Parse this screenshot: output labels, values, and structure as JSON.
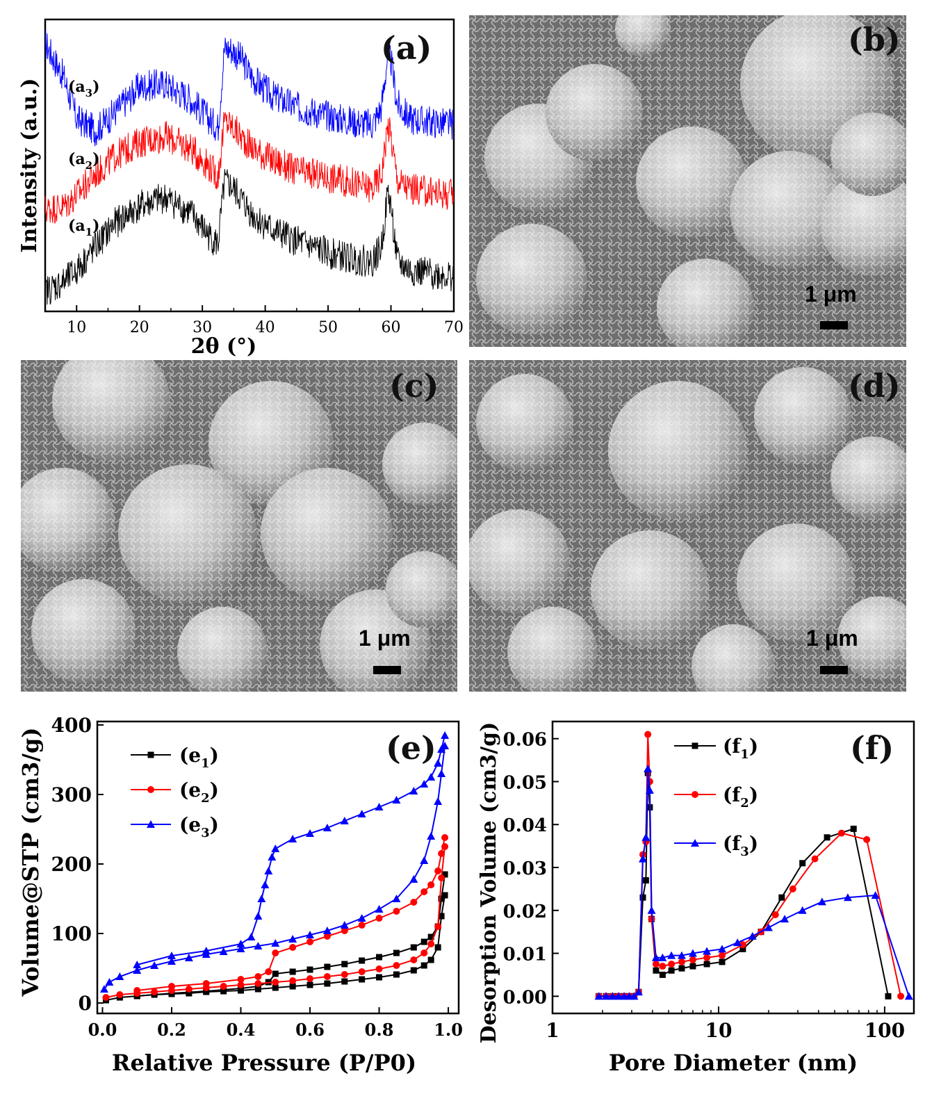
{
  "panels": {
    "a": {
      "label": "(a)"
    },
    "b": {
      "label": "(b)",
      "scale_label": "1 μm"
    },
    "c": {
      "label": "(c)",
      "scale_label": "1 μm"
    },
    "d": {
      "label": "(d)",
      "scale_label": "1 μm"
    },
    "e": {
      "label": "(e)"
    },
    "f": {
      "label": "(f)"
    }
  },
  "chart_data": [
    {
      "id": "a",
      "type": "line",
      "xlabel": "2θ (°)",
      "ylabel": "Intensity (a.u.)",
      "xlim": [
        5,
        70
      ],
      "xticks": [
        10,
        20,
        30,
        40,
        50,
        60,
        70
      ],
      "series": [
        {
          "name": "(a3)",
          "color": "#0000ff",
          "x": [
            5,
            8,
            10,
            13,
            16,
            20,
            24,
            28,
            31,
            32.5,
            33.5,
            34.5,
            36,
            38,
            41,
            45,
            50,
            54,
            57,
            58.5,
            59.5,
            60,
            61,
            63,
            66,
            70
          ],
          "y": [
            0.92,
            0.8,
            0.66,
            0.62,
            0.68,
            0.77,
            0.78,
            0.73,
            0.66,
            0.63,
            0.9,
            0.9,
            0.87,
            0.8,
            0.74,
            0.7,
            0.67,
            0.65,
            0.64,
            0.7,
            0.88,
            0.86,
            0.71,
            0.66,
            0.65,
            0.64
          ]
        },
        {
          "name": "(a2)",
          "color": "#ff0000",
          "x": [
            5,
            8,
            10,
            13,
            16,
            20,
            24,
            28,
            31,
            32.5,
            33.5,
            34.5,
            36,
            38,
            41,
            45,
            50,
            54,
            57,
            58.5,
            59.5,
            60,
            61,
            63,
            66,
            70
          ],
          "y": [
            0.35,
            0.36,
            0.4,
            0.47,
            0.53,
            0.58,
            0.6,
            0.56,
            0.5,
            0.46,
            0.65,
            0.64,
            0.6,
            0.56,
            0.52,
            0.48,
            0.46,
            0.44,
            0.42,
            0.47,
            0.64,
            0.6,
            0.45,
            0.42,
            0.41,
            0.4
          ]
        },
        {
          "name": "(a1)",
          "color": "#000000",
          "x": [
            5,
            8,
            10,
            13,
            16,
            20,
            24,
            28,
            31,
            32.5,
            33.5,
            34.5,
            36,
            38,
            41,
            45,
            50,
            54,
            57,
            58.5,
            59.5,
            60,
            61,
            63,
            66,
            70
          ],
          "y": [
            0.07,
            0.1,
            0.14,
            0.22,
            0.3,
            0.36,
            0.39,
            0.34,
            0.26,
            0.23,
            0.44,
            0.43,
            0.39,
            0.33,
            0.28,
            0.24,
            0.2,
            0.18,
            0.17,
            0.22,
            0.41,
            0.36,
            0.17,
            0.14,
            0.13,
            0.12
          ]
        }
      ],
      "annotations": [
        {
          "base": "(a",
          "sub": "3",
          "tail": ")"
        },
        {
          "base": "(a",
          "sub": "2",
          "tail": ")"
        },
        {
          "base": "(a",
          "sub": "1",
          "tail": ")"
        }
      ]
    },
    {
      "id": "e",
      "type": "line",
      "xlabel": "Relative Pressure (P/P0)",
      "ylabel": "Volume@STP (cm3/g)",
      "xlim": [
        0,
        1.0
      ],
      "ylim": [
        0,
        400
      ],
      "xticks": [
        0.0,
        0.2,
        0.4,
        0.6,
        0.8,
        1.0
      ],
      "xtick_labels": [
        "0.0",
        "0.2",
        "0.4",
        "0.6",
        "0.8",
        "1.0"
      ],
      "yticks": [
        0,
        100,
        200,
        300,
        400
      ],
      "legend": "top-left",
      "series": [
        {
          "name": "(e1)",
          "label_base": "(e",
          "label_sub": "1",
          "label_tail": ")",
          "color": "#000000",
          "marker": "square",
          "adsorption": {
            "x": [
              0.01,
              0.05,
              0.1,
              0.15,
              0.2,
              0.25,
              0.3,
              0.35,
              0.4,
              0.45,
              0.5,
              0.55,
              0.6,
              0.65,
              0.7,
              0.75,
              0.8,
              0.85,
              0.9,
              0.93,
              0.95,
              0.97,
              0.98,
              0.99
            ],
            "y": [
              4,
              8,
              10,
              12,
              13,
              14,
              16,
              17,
              18,
              20,
              22,
              24,
              26,
              28,
              31,
              34,
              37,
              41,
              47,
              54,
              62,
              80,
              125,
              155
            ]
          },
          "desorption": {
            "x": [
              0.99,
              0.98,
              0.97,
              0.95,
              0.93,
              0.9,
              0.85,
              0.8,
              0.75,
              0.7,
              0.65,
              0.6,
              0.55,
              0.5,
              0.48,
              0.45,
              0.4,
              0.3,
              0.2,
              0.1
            ],
            "y": [
              185,
              150,
              110,
              95,
              88,
              80,
              72,
              66,
              61,
              56,
              52,
              48,
              45,
              42,
              30,
              24,
              21,
              17,
              14,
              10
            ]
          }
        },
        {
          "name": "(e2)",
          "label_base": "(e",
          "label_sub": "2",
          "label_tail": ")",
          "color": "#ff0000",
          "marker": "circle",
          "adsorption": {
            "x": [
              0.01,
              0.05,
              0.1,
              0.15,
              0.2,
              0.25,
              0.3,
              0.35,
              0.4,
              0.45,
              0.5,
              0.55,
              0.6,
              0.65,
              0.7,
              0.75,
              0.8,
              0.85,
              0.9,
              0.93,
              0.95,
              0.97,
              0.98,
              0.99
            ],
            "y": [
              8,
              12,
              14,
              16,
              18,
              20,
              22,
              24,
              26,
              28,
              30,
              32,
              35,
              38,
              41,
              45,
              49,
              54,
              62,
              72,
              85,
              110,
              180,
              225
            ]
          },
          "desorption": {
            "x": [
              0.99,
              0.98,
              0.97,
              0.95,
              0.93,
              0.9,
              0.85,
              0.8,
              0.75,
              0.7,
              0.65,
              0.6,
              0.55,
              0.5,
              0.48,
              0.45,
              0.4,
              0.3,
              0.2,
              0.1
            ],
            "y": [
              238,
              215,
              190,
              170,
              160,
              145,
              132,
              122,
              112,
              104,
              96,
              88,
              80,
              72,
              45,
              38,
              34,
              28,
              24,
              18
            ]
          }
        },
        {
          "name": "(e3)",
          "label_base": "(e",
          "label_sub": "3",
          "label_tail": ")",
          "color": "#0000ff",
          "marker": "triangle",
          "adsorption": {
            "x": [
              0.005,
              0.02,
              0.05,
              0.1,
              0.15,
              0.2,
              0.25,
              0.3,
              0.35,
              0.4,
              0.45,
              0.5,
              0.55,
              0.6,
              0.65,
              0.7,
              0.75,
              0.8,
              0.85,
              0.9,
              0.93,
              0.95,
              0.97,
              0.98,
              0.99
            ],
            "y": [
              20,
              30,
              38,
              47,
              54,
              60,
              65,
              70,
              74,
              78,
              82,
              86,
              92,
              98,
              104,
              112,
              122,
              135,
              150,
              178,
              205,
              240,
              290,
              330,
              370
            ]
          },
          "desorption": {
            "x": [
              0.99,
              0.98,
              0.97,
              0.95,
              0.93,
              0.9,
              0.85,
              0.8,
              0.75,
              0.7,
              0.65,
              0.6,
              0.55,
              0.5,
              0.49,
              0.48,
              0.47,
              0.46,
              0.45,
              0.43,
              0.4,
              0.3,
              0.2,
              0.1
            ],
            "y": [
              385,
              365,
              345,
              325,
              315,
              305,
              292,
              282,
              272,
              262,
              252,
              244,
              236,
              222,
              210,
              190,
              170,
              150,
              125,
              95,
              85,
              75,
              68,
              55
            ]
          }
        }
      ]
    },
    {
      "id": "f",
      "type": "line",
      "xlabel": "Pore Diameter (nm)",
      "ylabel": "Desorption Volume (cm3/g)",
      "xscale": "log",
      "xlim": [
        1,
        150
      ],
      "ylim": [
        -0.004,
        0.064
      ],
      "xticks": [
        1,
        10,
        100
      ],
      "yticks": [
        0.0,
        0.01,
        0.02,
        0.03,
        0.04,
        0.05,
        0.06
      ],
      "ytick_labels": [
        "0.00",
        "0.01",
        "0.02",
        "0.03",
        "0.04",
        "0.05",
        "0.06"
      ],
      "legend": "top-right",
      "series": [
        {
          "name": "(f1)",
          "label_base": "(f",
          "label_sub": "1",
          "label_tail": ")",
          "color": "#000000",
          "marker": "square",
          "x": [
            1.9,
            2.1,
            2.3,
            2.5,
            2.7,
            2.9,
            3.1,
            3.3,
            3.5,
            3.65,
            3.75,
            3.85,
            3.95,
            4.2,
            4.6,
            5.2,
            6,
            7,
            8.5,
            10.5,
            14,
            18,
            24,
            32,
            45,
            65,
            105
          ],
          "y": [
            0,
            0,
            0,
            0,
            0,
            0,
            0,
            0.001,
            0.023,
            0.027,
            0.052,
            0.044,
            0.018,
            0.006,
            0.005,
            0.006,
            0.0065,
            0.007,
            0.0075,
            0.008,
            0.011,
            0.015,
            0.023,
            0.031,
            0.037,
            0.039,
            0.0
          ]
        },
        {
          "name": "(f2)",
          "label_base": "(f",
          "label_sub": "2",
          "label_tail": ")",
          "color": "#ff0000",
          "marker": "circle",
          "x": [
            1.9,
            2.1,
            2.3,
            2.5,
            2.7,
            2.9,
            3.1,
            3.3,
            3.5,
            3.65,
            3.75,
            3.85,
            3.95,
            4.2,
            4.6,
            5.2,
            6,
            7,
            8.5,
            10.5,
            14,
            18,
            22,
            28,
            38,
            55,
            78,
            125
          ],
          "y": [
            0,
            0,
            0,
            0,
            0,
            0,
            0,
            0.001,
            0.033,
            0.036,
            0.061,
            0.05,
            0.018,
            0.0075,
            0.007,
            0.0075,
            0.008,
            0.0085,
            0.009,
            0.0095,
            0.012,
            0.015,
            0.019,
            0.025,
            0.032,
            0.038,
            0.0365,
            0.0
          ]
        },
        {
          "name": "(f3)",
          "label_base": "(f",
          "label_sub": "3",
          "label_tail": ")",
          "color": "#0000ff",
          "marker": "triangle",
          "x": [
            1.9,
            2.1,
            2.3,
            2.5,
            2.7,
            2.9,
            3.1,
            3.3,
            3.5,
            3.65,
            3.75,
            3.85,
            3.95,
            4.2,
            4.6,
            5.2,
            6,
            7,
            8.5,
            10.5,
            13,
            16,
            20,
            25,
            32,
            42,
            60,
            88,
            140
          ],
          "y": [
            0,
            0,
            0,
            0,
            0,
            0,
            0,
            0.001,
            0.032,
            0.037,
            0.053,
            0.048,
            0.02,
            0.009,
            0.009,
            0.0095,
            0.0095,
            0.01,
            0.0105,
            0.011,
            0.0125,
            0.014,
            0.016,
            0.018,
            0.02,
            0.022,
            0.023,
            0.0235,
            0.0
          ]
        }
      ]
    }
  ]
}
